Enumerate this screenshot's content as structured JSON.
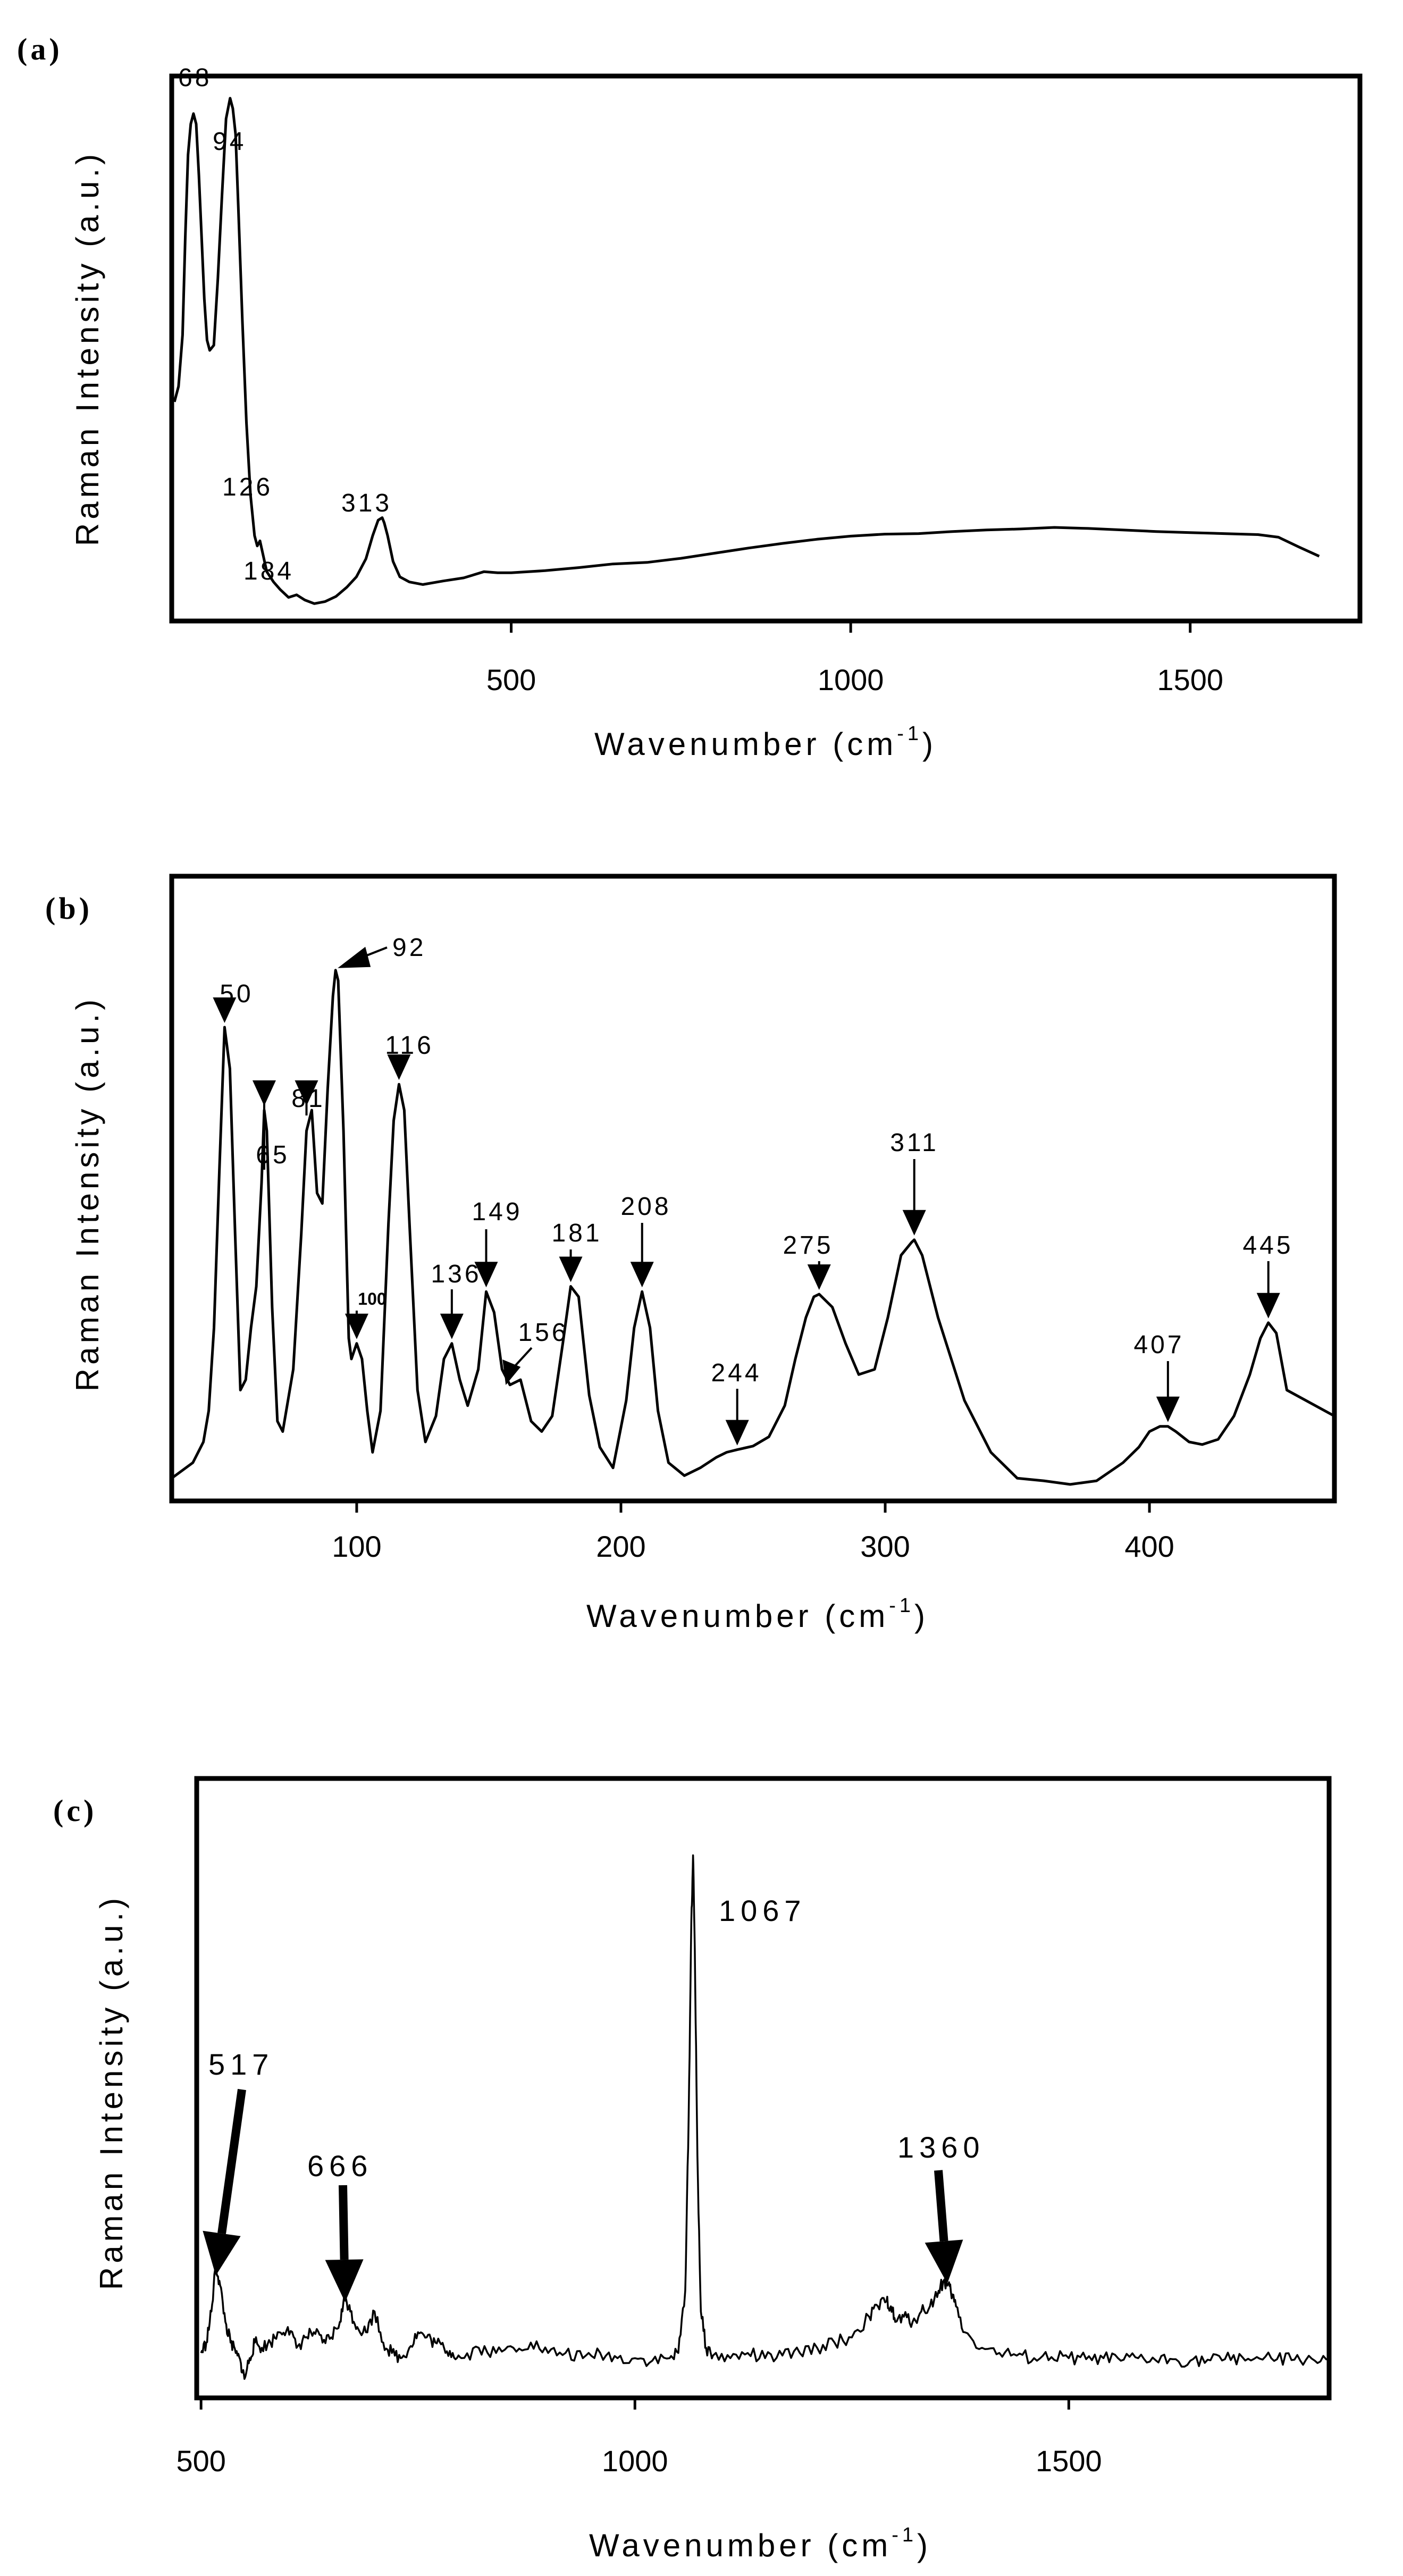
{
  "chart_data": [
    {
      "panel": "(a)",
      "type": "line",
      "xlabel": "Wavenumber (cm",
      "xlabel_sup": "-1",
      "xlabel_close": ")",
      "ylabel": "Raman Intensity (a.u.)",
      "xlim": [
        0,
        1750
      ],
      "ylim": [
        0,
        100
      ],
      "xticks": [
        500,
        1000,
        1500
      ],
      "xtick_labels": [
        "500",
        "1000",
        "1500"
      ],
      "spectrum": {
        "x": [
          4,
          10,
          16,
          20,
          24,
          28,
          32,
          36,
          40,
          44,
          48,
          52,
          56,
          62,
          68,
          74,
          80,
          86,
          90,
          94,
          98,
          104,
          110,
          116,
          122,
          126,
          130,
          140,
          150,
          160,
          172,
          184,
          196,
          210,
          226,
          242,
          258,
          272,
          286,
          296,
          304,
          310,
          313,
          318,
          326,
          336,
          350,
          370,
          400,
          430,
          460,
          480,
          500,
          550,
          600,
          650,
          700,
          750,
          800,
          850,
          900,
          950,
          1000,
          1050,
          1100,
          1150,
          1200,
          1250,
          1300,
          1350,
          1400,
          1450,
          1500,
          1550,
          1600,
          1630,
          1660,
          1690
        ],
        "y": [
          40,
          43,
          53,
          72,
          88,
          94,
          96,
          94,
          84,
          72,
          60,
          52,
          50,
          51,
          64,
          80,
          95,
          99,
          97,
          92,
          78,
          56,
          36,
          22,
          14,
          12,
          13,
          7,
          5,
          3.5,
          2,
          2.5,
          1.5,
          0.8,
          1.2,
          2.2,
          4,
          6,
          9.5,
          14,
          17,
          17.5,
          16.5,
          14,
          9,
          6,
          5,
          4.5,
          5.2,
          5.8,
          7,
          6.8,
          6.8,
          7.2,
          7.8,
          8.5,
          8.8,
          9.6,
          10.6,
          11.6,
          12.5,
          13.3,
          13.9,
          14.3,
          14.4,
          14.8,
          15.1,
          15.3,
          15.6,
          15.4,
          15.1,
          14.8,
          14.6,
          14.4,
          14.2,
          13.7,
          11.8,
          10
        ]
      },
      "peaks": [
        {
          "label": "68",
          "x": 68
        },
        {
          "label": "94",
          "x": 94
        },
        {
          "label": "126",
          "x": 126
        },
        {
          "label": "184",
          "x": 184
        },
        {
          "label": "313",
          "x": 313
        }
      ]
    },
    {
      "panel": "(b)",
      "type": "line",
      "xlabel": "Wavenumber (cm",
      "xlabel_sup": "-1",
      "xlabel_close": ")",
      "ylabel": "Raman Intensity (a.u.)",
      "xlim": [
        30,
        470
      ],
      "ylim": [
        0,
        100
      ],
      "xticks": [
        100,
        200,
        300,
        400
      ],
      "xtick_labels": [
        "100",
        "200",
        "300",
        "400"
      ],
      "spectrum": {
        "x": [
          30,
          34,
          38,
          42,
          44,
          46,
          48,
          50,
          52,
          54,
          56,
          58,
          60,
          62,
          64,
          65,
          66,
          68,
          70,
          72,
          76,
          79,
          81,
          83,
          85,
          87,
          89,
          91,
          92,
          93,
          95,
          97,
          98,
          100,
          102,
          104,
          106,
          109,
          112,
          114,
          116,
          118,
          120,
          123,
          126,
          130,
          133,
          136,
          139,
          142,
          146,
          149,
          152,
          155,
          158,
          162,
          166,
          170,
          174,
          178,
          181,
          184,
          188,
          192,
          197,
          202,
          205,
          208,
          211,
          214,
          218,
          224,
          230,
          236,
          240,
          244,
          250,
          256,
          262,
          266,
          270,
          273,
          275,
          280,
          285,
          290,
          296,
          301,
          306,
          310,
          311,
          314,
          320,
          330,
          340,
          350,
          360,
          370,
          380,
          390,
          396,
          400,
          404,
          407,
          410,
          415,
          420,
          426,
          432,
          438,
          442,
          445,
          448,
          452,
          470
        ],
        "y": [
          1,
          2.5,
          4,
          8,
          14,
          30,
          60,
          88,
          80,
          48,
          18,
          20,
          30,
          38,
          58,
          72,
          68,
          34,
          12,
          10,
          22,
          48,
          68,
          72,
          56,
          54,
          76,
          94,
          99,
          97,
          68,
          28,
          24,
          27,
          24,
          14,
          6,
          14,
          50,
          70,
          77,
          72,
          50,
          18,
          8,
          13,
          24,
          27,
          20,
          15,
          22,
          37,
          33,
          22,
          19,
          20,
          12,
          10,
          13,
          27,
          38,
          36,
          17,
          7,
          3,
          16,
          30,
          37,
          30,
          14,
          4,
          1.5,
          3,
          5,
          6,
          6.5,
          7.2,
          9,
          15,
          24,
          32,
          36,
          36.5,
          34,
          27,
          21,
          22,
          32,
          44,
          46.5,
          47,
          44,
          32,
          16,
          6,
          1,
          0.5,
          -0.2,
          0.5,
          4,
          7,
          10,
          11,
          11,
          10,
          8,
          7.5,
          8.5,
          13,
          21,
          28,
          31,
          29,
          18,
          13
        ]
      },
      "peaks": [
        {
          "label": "50",
          "x": 50,
          "tip": 88
        },
        {
          "label": "65",
          "x": 65,
          "tip": 72
        },
        {
          "label": "81",
          "x": 81,
          "tip": 72
        },
        {
          "label": "92",
          "x": 92,
          "tip": 99
        },
        {
          "label": "100",
          "x": 100,
          "tip": 27
        },
        {
          "label": "116",
          "x": 116,
          "tip": 77
        },
        {
          "label": "136",
          "x": 136,
          "tip": 27
        },
        {
          "label": "149",
          "x": 149,
          "tip": 37
        },
        {
          "label": "156",
          "x": 156,
          "tip": 20
        },
        {
          "label": "181",
          "x": 181,
          "tip": 38
        },
        {
          "label": "208",
          "x": 208,
          "tip": 37
        },
        {
          "label": "244",
          "x": 244,
          "tip": 6.5
        },
        {
          "label": "275",
          "x": 275,
          "tip": 36.5
        },
        {
          "label": "311",
          "x": 311,
          "tip": 47
        },
        {
          "label": "407",
          "x": 407,
          "tip": 11
        },
        {
          "label": "445",
          "x": 445,
          "tip": 31
        }
      ]
    },
    {
      "panel": "(c)",
      "type": "line",
      "xlabel": "Wavenumber (cm",
      "xlabel_sup": "-1",
      "xlabel_close": ")",
      "ylabel": "Raman Intensity (a.u.)",
      "xlim": [
        495,
        1800
      ],
      "ylim": [
        0,
        100
      ],
      "xticks": [
        500,
        1000,
        1500
      ],
      "xtick_labels": [
        "500",
        "1000",
        "1500"
      ],
      "spectrum": {
        "x": [
          500,
          506,
          512,
          517,
          522,
          528,
          534,
          540,
          546,
          550,
          556,
          562,
          570,
          580,
          590,
          600,
          610,
          620,
          630,
          640,
          650,
          660,
          666,
          672,
          680,
          690,
          700,
          710,
          720,
          730,
          740,
          750,
          760,
          770,
          780,
          790,
          800,
          820,
          840,
          860,
          880,
          900,
          920,
          940,
          960,
          980,
          1000,
          1020,
          1040,
          1050,
          1058,
          1062,
          1065,
          1067,
          1069,
          1072,
          1076,
          1082,
          1090,
          1110,
          1130,
          1150,
          1170,
          1190,
          1210,
          1230,
          1250,
          1270,
          1280,
          1290,
          1295,
          1300,
          1310,
          1320,
          1330,
          1340,
          1350,
          1356,
          1360,
          1364,
          1370,
          1380,
          1400,
          1420,
          1440,
          1460,
          1480,
          1500,
          1520,
          1540,
          1560,
          1580,
          1600,
          1620,
          1640,
          1660,
          1680,
          1700,
          1720,
          1740,
          1760,
          1780,
          1800
        ],
        "y": [
          2,
          4,
          10,
          19,
          15,
          8,
          4,
          2,
          0,
          -3,
          1,
          4,
          3,
          4,
          6,
          7,
          3,
          5,
          6,
          4,
          5,
          8,
          13,
          10,
          7,
          6,
          10,
          4,
          2,
          1,
          3,
          6,
          5,
          4,
          3,
          2,
          1,
          3,
          2,
          3,
          4,
          2,
          2,
          1,
          2,
          1,
          1,
          0.5,
          1,
          2,
          14,
          48,
          85,
          98,
          80,
          40,
          10,
          3,
          1.5,
          1,
          2,
          1,
          1.5,
          2,
          3,
          4,
          5,
          9,
          11,
          12,
          11,
          8,
          9,
          8,
          10,
          11,
          14,
          16,
          15,
          14,
          11,
          6,
          3,
          2,
          1.5,
          1,
          1.2,
          1,
          0.8,
          1,
          0.5,
          1,
          0.6,
          0.8,
          0.5,
          0.7,
          0.8,
          1.2,
          0.9,
          0.8,
          0.7,
          0.9,
          0.8
        ]
      },
      "peaks": [
        {
          "label": "517",
          "x": 517
        },
        {
          "label": "666",
          "x": 666
        },
        {
          "label": "1067",
          "x": 1067
        },
        {
          "label": "1360",
          "x": 1360
        }
      ]
    }
  ]
}
